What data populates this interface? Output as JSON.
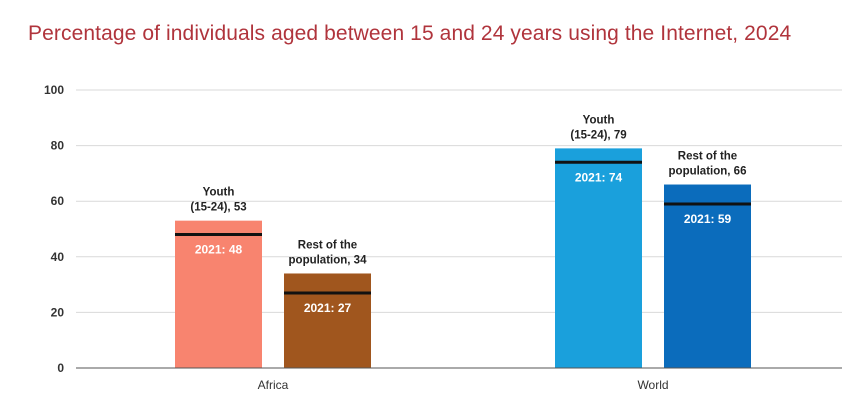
{
  "chart_data": {
    "type": "bar",
    "title": "Percentage of individuals aged between 15 and 24 years using the Internet, 2024",
    "categories": [
      "Africa",
      "World"
    ],
    "series": [
      {
        "name": "Youth (15-24)",
        "label_lines": [
          "Youth",
          "(15-24),"
        ],
        "values": [
          53,
          79
        ],
        "values_2021": [
          48,
          74
        ],
        "color_by_category": [
          "#f8846f",
          "#1aa0dc"
        ]
      },
      {
        "name": "Rest of the population",
        "label_lines": [
          "Rest of the",
          "population,"
        ],
        "values": [
          34,
          66
        ],
        "values_2021": [
          27,
          59
        ],
        "color_by_category": [
          "#a0561e",
          "#0b6cbc"
        ]
      }
    ],
    "marker_prefix": "2021:",
    "ylim": [
      0,
      100
    ],
    "yticks": [
      0,
      20,
      40,
      60,
      80,
      100
    ],
    "xlabel": "",
    "ylabel": "",
    "grid": true,
    "legend": "none"
  }
}
